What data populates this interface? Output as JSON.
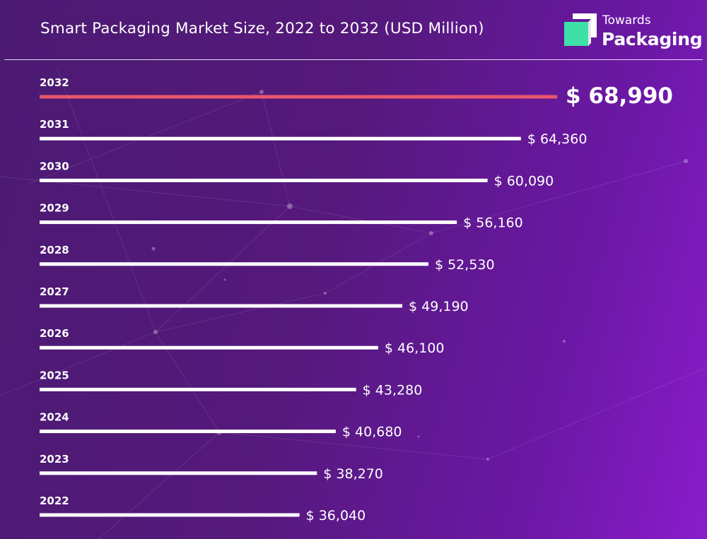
{
  "header": {
    "title": "Smart Packaging Market Size, 2022 to 2032 (USD Million)"
  },
  "logo": {
    "line1": "Towards",
    "line2": "Packaging",
    "colors": {
      "mark_front": "#3fe0a8",
      "mark_back": "#ffffff"
    }
  },
  "chart_data": {
    "type": "bar",
    "orientation": "horizontal",
    "title": "Smart Packaging Market Size, 2022 to 2032 (USD Million)",
    "categories": [
      "2032",
      "2031",
      "2030",
      "2029",
      "2028",
      "2027",
      "2026",
      "2025",
      "2024",
      "2023",
      "2022"
    ],
    "values": [
      68990,
      64360,
      60090,
      56160,
      52530,
      49190,
      46100,
      43280,
      40680,
      38270,
      36040
    ],
    "value_labels": [
      "$ 68,990",
      "$ 64,360",
      "$ 60,090",
      "$ 56,160",
      "$ 52,530",
      "$ 49,190",
      "$ 46,100",
      "$ 43,280",
      "$ 40,680",
      "$ 38,270",
      "$ 36,040"
    ],
    "highlight_category": "2032",
    "colors": {
      "highlight": "#e8576c",
      "bar": "#ffffff",
      "text": "#ffffff"
    },
    "grid": false,
    "legend": "none"
  }
}
